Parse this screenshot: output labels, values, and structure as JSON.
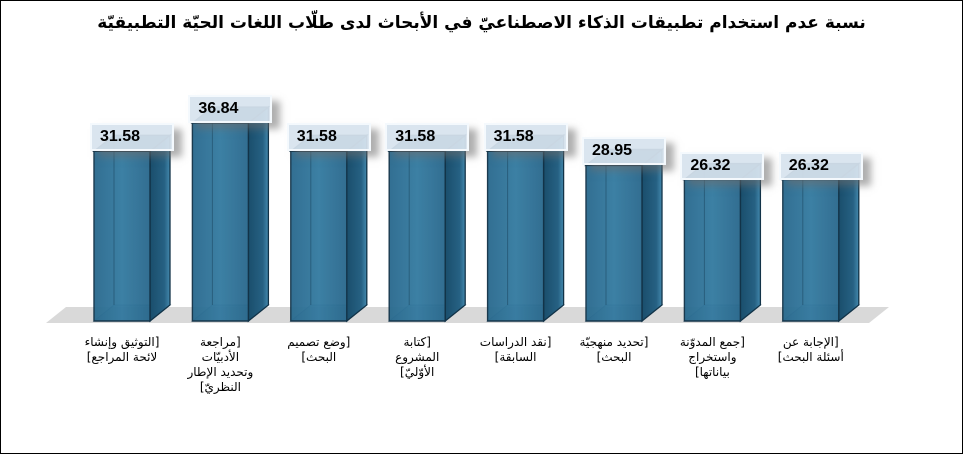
{
  "chart_data": {
    "type": "bar",
    "variant": "3d-column",
    "title": "نسبة عدم استخدام تطبيقات الذكاء الاصطناعيّ في الأبحاث لدى طلّاب اللغات الحيّة التطبيقيّة",
    "values": [
      31.58,
      36.84,
      31.58,
      31.58,
      31.58,
      28.95,
      26.32,
      26.32
    ],
    "data_labels": [
      "31.58",
      "36.84",
      "31.58",
      "31.58",
      "31.58",
      "28.95",
      "26.32",
      "26.32"
    ],
    "categories": [
      "[التوثيق وإنشاء لائحة المراجع]",
      "[مراجعة الأدبيّات وتحديد الإطار النظريّ]",
      "[وضع تصميم البحث]",
      "[كتابة المشروع الأوّليّ]",
      "[نقد الدراسات السابقة]",
      "[تحديد منهجيّة البحث]",
      "[جمع المدوّنة واستخراج بياناتها]",
      "[الإجابة عن أسئلة البحث]"
    ],
    "category_label_lines": [
      [
        "[التوثيق وإنشاء",
        "لائحة المراجع]"
      ],
      [
        "[مراجعة",
        "الأدبيّات",
        "وتحديد الإطار",
        "النظريّ]"
      ],
      [
        "[وضع تصميم",
        "البحث]"
      ],
      [
        "[كتابة",
        "المشروع",
        "الأوّليّ]"
      ],
      [
        "[نقد الدراسات",
        "السابقة]"
      ],
      [
        "[تحديد منهجيّة",
        "البحث]"
      ],
      [
        "[جمع المدوّنة",
        "واستخراج",
        "بياناتها]"
      ],
      [
        "[الإجابة عن",
        "أسئلة البحث]"
      ]
    ],
    "xlabel": "",
    "ylabel": "",
    "ylim": [
      0,
      40
    ],
    "grid": false,
    "legend": "none",
    "colors": {
      "bar_front": "#2d6e91",
      "bar_front_light": "#3a7fa6",
      "bar_top": "#1c5472",
      "bar_side_dark": "#1a4e6c",
      "bar_side_light": "#4389ae",
      "bar_outline": "#123348",
      "floor": "#d9d9d9",
      "label_box_bg": "#d7e3ee",
      "label_box_border": "#f6fafd",
      "text": "#000000",
      "background": "#ffffff"
    }
  }
}
